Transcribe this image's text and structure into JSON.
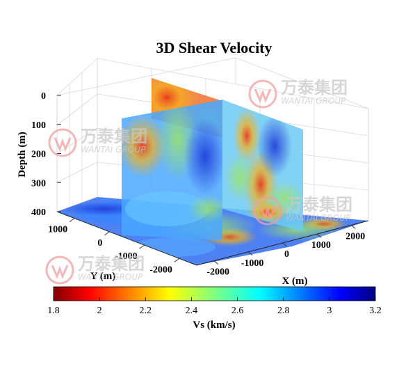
{
  "watermark": {
    "brand_cn": "万泰集团",
    "brand_en": "WANTAI GROUP"
  },
  "chart_data": {
    "type": "volume-slice",
    "title": "3D Shear Velocity",
    "xlabel": "X (m)",
    "ylabel": "Y (m)",
    "zlabel": "Depth (m)",
    "x_ticks": [
      -2000,
      -1000,
      0,
      1000,
      2000
    ],
    "y_ticks": [
      1000,
      0,
      -1000,
      -2000
    ],
    "z_ticks": [
      0,
      100,
      200,
      300,
      400
    ],
    "xlim": [
      -2500,
      2500
    ],
    "ylim": [
      -2500,
      1500
    ],
    "zlim": [
      0,
      400
    ],
    "z_reversed": true,
    "grid": true,
    "slices": [
      {
        "orientation": "y",
        "value": 0
      },
      {
        "orientation": "x",
        "value": 0
      },
      {
        "orientation": "z",
        "value": 400
      }
    ],
    "colorbar": {
      "label": "Vs (km/s)",
      "ticks": [
        1.8,
        2,
        2.2,
        2.4,
        2.6,
        2.8,
        3,
        3.2
      ],
      "range": [
        1.8,
        3.2
      ],
      "colormap": "jet-reversed",
      "placement": "bottom"
    }
  }
}
